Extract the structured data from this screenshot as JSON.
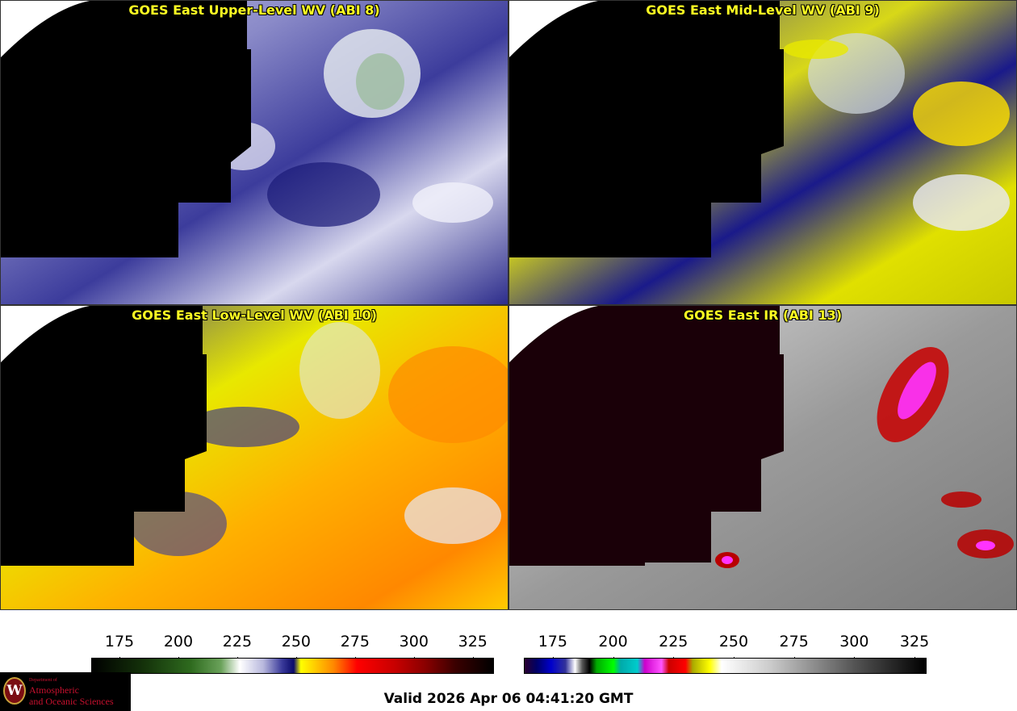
{
  "panels": [
    {
      "title": "GOES East Upper-Level WV (ABI 8)",
      "scheme": "wv_upper"
    },
    {
      "title": "GOES East Mid-Level WV (ABI 9)",
      "scheme": "wv_mid"
    },
    {
      "title": "GOES East Low-Level WV (ABI 10)",
      "scheme": "wv_low"
    },
    {
      "title": "GOES East IR (ABI 13)",
      "scheme": "ir"
    }
  ],
  "colorbars": [
    {
      "name": "wv-colorbar",
      "ticks": [
        "175",
        "200",
        "225",
        "250",
        "275",
        "300",
        "325"
      ],
      "range": [
        163,
        334
      ],
      "stops": [
        [
          163,
          "#000000"
        ],
        [
          185,
          "#14320a"
        ],
        [
          205,
          "#2e6a1e"
        ],
        [
          218,
          "#6aa25a"
        ],
        [
          226,
          "#ffffff"
        ],
        [
          236,
          "#b8b8dd"
        ],
        [
          244,
          "#3a3a9a"
        ],
        [
          249,
          "#0a0a6a"
        ],
        [
          252,
          "#ffff00"
        ],
        [
          258,
          "#ffcc00"
        ],
        [
          266,
          "#ff8800"
        ],
        [
          276,
          "#ff0000"
        ],
        [
          292,
          "#c80000"
        ],
        [
          305,
          "#8a0000"
        ],
        [
          318,
          "#3a0000"
        ],
        [
          334,
          "#000000"
        ]
      ]
    },
    {
      "name": "ir-colorbar",
      "ticks": [
        "175",
        "200",
        "225",
        "250",
        "275",
        "300",
        "325"
      ],
      "range": [
        163,
        330
      ],
      "stops": [
        [
          163,
          "#2a0030"
        ],
        [
          168,
          "#000066"
        ],
        [
          174,
          "#0000cc"
        ],
        [
          180,
          "#333399"
        ],
        [
          184,
          "#ffffff"
        ],
        [
          187,
          "#555555"
        ],
        [
          190,
          "#000000"
        ],
        [
          193,
          "#00aa00"
        ],
        [
          200,
          "#00ff00"
        ],
        [
          203,
          "#00aaaa"
        ],
        [
          210,
          "#00cccc"
        ],
        [
          213,
          "#cc00cc"
        ],
        [
          220,
          "#ff55ff"
        ],
        [
          223,
          "#cc0000"
        ],
        [
          230,
          "#ff0000"
        ],
        [
          233,
          "#aaaa00"
        ],
        [
          240,
          "#ffff00"
        ],
        [
          245,
          "#ffffff"
        ],
        [
          265,
          "#cccccc"
        ],
        [
          300,
          "#555555"
        ],
        [
          330,
          "#000000"
        ]
      ]
    }
  ],
  "logo": {
    "seal": "W",
    "line1": "Department of",
    "line2": "Atmospheric",
    "line3": "and Oceanic Sciences"
  },
  "valid": "Valid 2026 Apr 06 04:41:20 GMT",
  "colors": {
    "title": "#ffff22",
    "state_borders": "#ff2a2a",
    "country_borders": "#8b4a1a",
    "coastline": "#00aa00"
  }
}
